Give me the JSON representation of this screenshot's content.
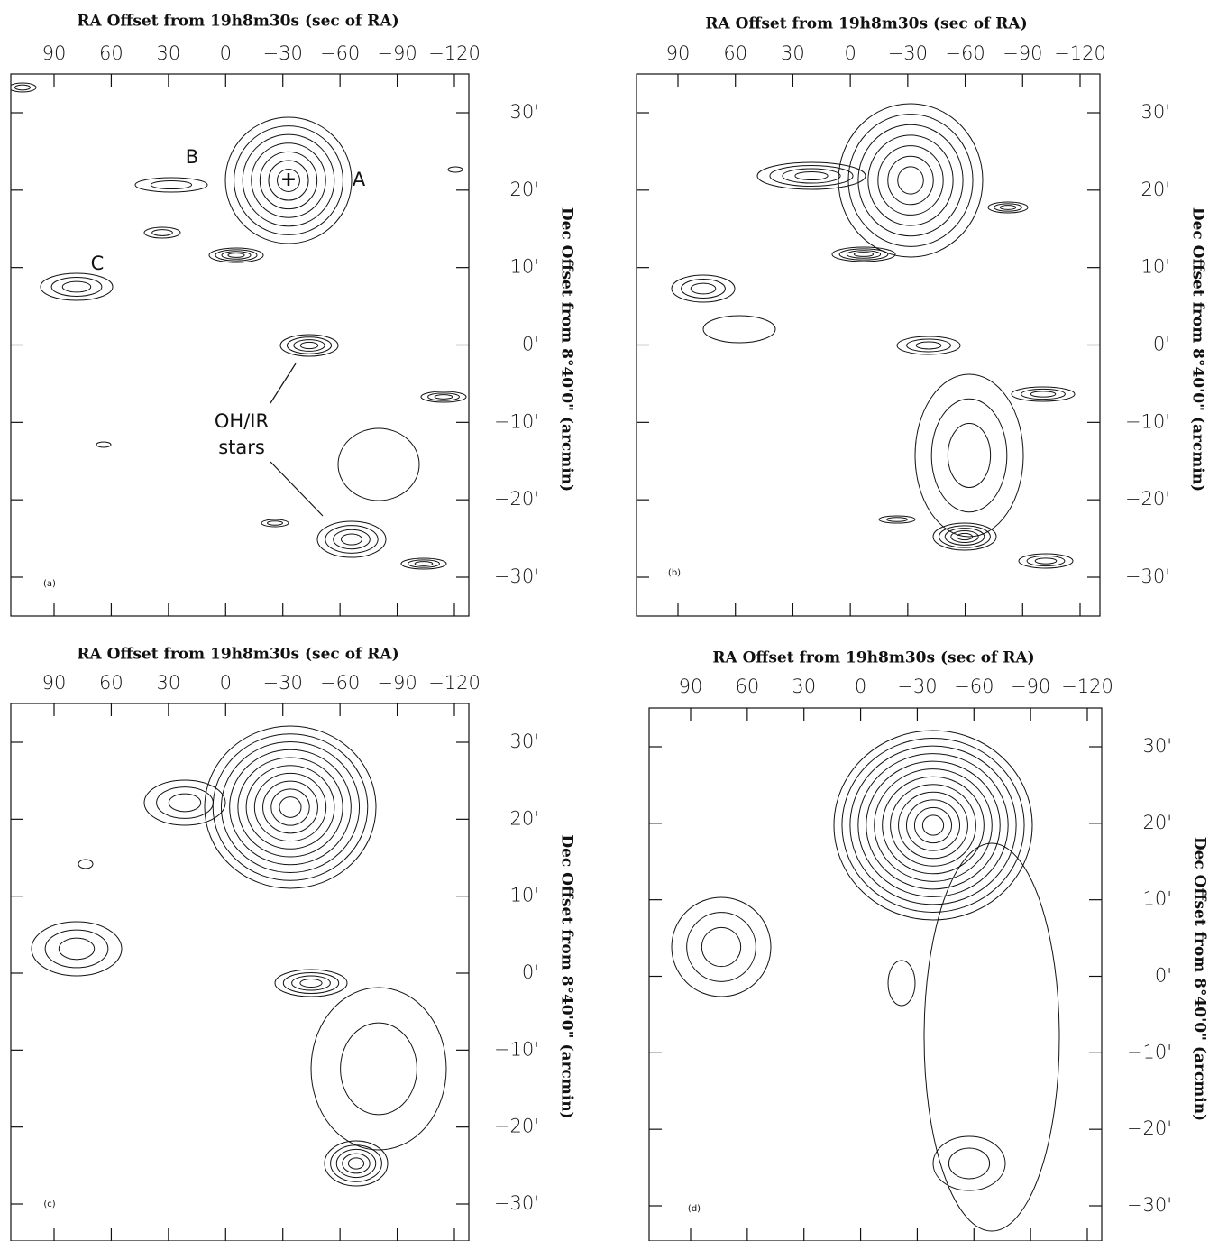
{
  "chart_data": [
    {
      "type": "contour",
      "title": "RA Offset from 19h8m30s (sec of RA)",
      "ylabel": "Dec Offset from 8°40'0\" (arcmin)",
      "panel_label": "(a)",
      "annotations": [
        "A",
        "B",
        "C",
        "OH/IR",
        "stars"
      ],
      "xlim": [
        113,
        -128
      ],
      "ylim": [
        -35,
        35
      ],
      "xticks": [
        90,
        60,
        30,
        0,
        {
          "value": -30,
          "label": "−30"
        },
        {
          "value": -60,
          "label": "−60"
        },
        {
          "value": -90,
          "label": "−90"
        },
        {
          "value": -120,
          "label": "−120"
        }
      ],
      "yticks": [
        {
          "value": 30,
          "label": "30'"
        },
        {
          "value": 20,
          "label": "20'"
        },
        {
          "value": 10,
          "label": "10'"
        },
        {
          "value": 0,
          "label": "0'"
        },
        {
          "value": -10,
          "label": "−10'"
        },
        {
          "value": -20,
          "label": "−20'"
        },
        {
          "value": -30,
          "label": "−30'"
        }
      ]
    },
    {
      "type": "contour",
      "title": "RA Offset from 19h8m30s (sec of RA)",
      "ylabel": "Dec Offset from 8°40'0\" (arcmin)",
      "panel_label": "(b)",
      "xlim": [
        113,
        -128
      ],
      "ylim": [
        -35,
        35
      ],
      "xticks": [
        90,
        60,
        30,
        0,
        {
          "value": -30,
          "label": "−30"
        },
        {
          "value": -60,
          "label": "−60"
        },
        {
          "value": -90,
          "label": "−90"
        },
        {
          "value": -120,
          "label": "−120"
        }
      ],
      "yticks": [
        {
          "value": 30,
          "label": "30'"
        },
        {
          "value": 20,
          "label": "20'"
        },
        {
          "value": 10,
          "label": "10'"
        },
        {
          "value": 0,
          "label": "0'"
        },
        {
          "value": -10,
          "label": "−10'"
        },
        {
          "value": -20,
          "label": "−20'"
        },
        {
          "value": -30,
          "label": "−30'"
        }
      ]
    },
    {
      "type": "contour",
      "title": "RA Offset from 19h8m30s (sec of RA)",
      "ylabel": "Dec Offset from 8°40'0\" (arcmin)",
      "panel_label": "(c)",
      "xlim": [
        113,
        -128
      ],
      "ylim": [
        -35,
        35
      ],
      "xticks": [
        90,
        60,
        30,
        0,
        {
          "value": -30,
          "label": "−30"
        },
        {
          "value": -60,
          "label": "−60"
        },
        {
          "value": -90,
          "label": "−90"
        },
        {
          "value": -120,
          "label": "−120"
        }
      ],
      "yticks": [
        {
          "value": 30,
          "label": "30'"
        },
        {
          "value": 20,
          "label": "20'"
        },
        {
          "value": 10,
          "label": "10'"
        },
        {
          "value": 0,
          "label": "0'"
        },
        {
          "value": -10,
          "label": "−10'"
        },
        {
          "value": -20,
          "label": "−20'"
        },
        {
          "value": -30,
          "label": "−30'"
        }
      ]
    },
    {
      "type": "contour",
      "title": "RA Offset from 19h8m30s (sec of RA)",
      "ylabel": "Dec Offset from 8°40'0\" (arcmin)",
      "panel_label": "(d)",
      "xlim": [
        113,
        -128
      ],
      "ylim": [
        -35,
        35
      ],
      "xticks": [
        90,
        60,
        30,
        0,
        {
          "value": -30,
          "label": "−30"
        },
        {
          "value": -60,
          "label": "−60"
        },
        {
          "value": -90,
          "label": "−90"
        },
        {
          "value": -120,
          "label": "−120"
        }
      ],
      "yticks": [
        {
          "value": 30,
          "label": "30'"
        },
        {
          "value": 20,
          "label": "20'"
        },
        {
          "value": 10,
          "label": "10'"
        },
        {
          "value": 0,
          "label": "0'"
        },
        {
          "value": -10,
          "label": "−10'"
        },
        {
          "value": -20,
          "label": "−20'"
        },
        {
          "value": -30,
          "label": "−30'"
        }
      ]
    }
  ]
}
